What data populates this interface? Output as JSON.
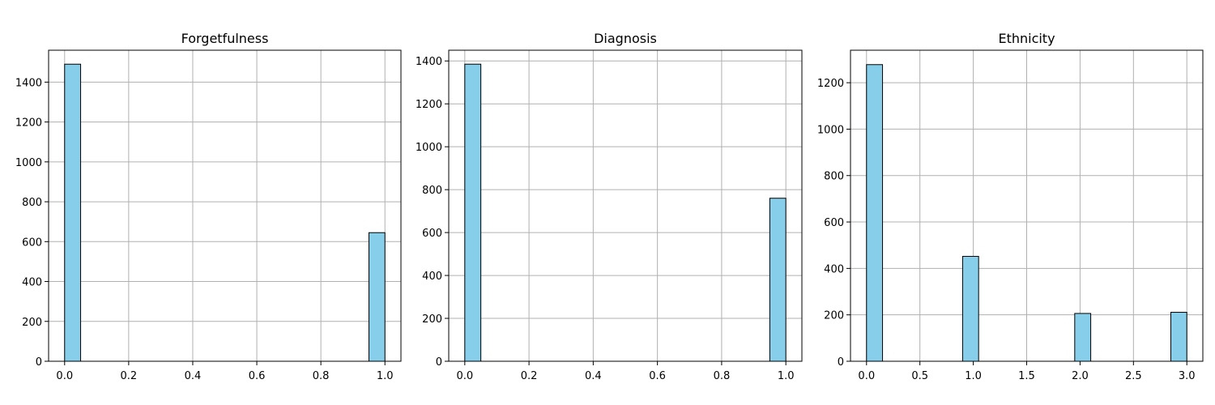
{
  "chart_data": [
    {
      "type": "bar",
      "title": "Forgetfulness",
      "xlim": [
        -0.05,
        1.05
      ],
      "ylim": [
        0,
        1560
      ],
      "xticks": [
        "0.0",
        "0.2",
        "0.4",
        "0.6",
        "0.8",
        "1.0"
      ],
      "yticks": [
        "0",
        "200",
        "400",
        "600",
        "800",
        "1000",
        "1200",
        "1400"
      ],
      "grid": true,
      "bins": [
        {
          "x0": 0.0,
          "x1": 0.05,
          "count": 1490
        },
        {
          "x0": 0.95,
          "x1": 1.0,
          "count": 645
        }
      ],
      "bar_color": "#87ceeb",
      "edge_color": "#000000"
    },
    {
      "type": "bar",
      "title": "Diagnosis",
      "xlim": [
        -0.05,
        1.05
      ],
      "ylim": [
        0,
        1450
      ],
      "xticks": [
        "0.0",
        "0.2",
        "0.4",
        "0.6",
        "0.8",
        "1.0"
      ],
      "yticks": [
        "0",
        "200",
        "400",
        "600",
        "800",
        "1000",
        "1200",
        "1400"
      ],
      "grid": true,
      "bins": [
        {
          "x0": 0.0,
          "x1": 0.05,
          "count": 1385
        },
        {
          "x0": 0.95,
          "x1": 1.0,
          "count": 760
        }
      ],
      "bar_color": "#87ceeb",
      "edge_color": "#000000"
    },
    {
      "type": "bar",
      "title": "Ethnicity",
      "xlim": [
        -0.15,
        3.15
      ],
      "ylim": [
        0,
        1340
      ],
      "xticks": [
        "0.0",
        "0.5",
        "1.0",
        "1.5",
        "2.0",
        "2.5",
        "3.0"
      ],
      "yticks": [
        "0",
        "200",
        "400",
        "600",
        "800",
        "1000",
        "1200"
      ],
      "grid": true,
      "bins": [
        {
          "x0": 0.0,
          "x1": 0.15,
          "count": 1278
        },
        {
          "x0": 0.9,
          "x1": 1.05,
          "count": 452
        },
        {
          "x0": 1.95,
          "x1": 2.1,
          "count": 206
        },
        {
          "x0": 2.85,
          "x1": 3.0,
          "count": 211
        }
      ],
      "bar_color": "#87ceeb",
      "edge_color": "#000000"
    }
  ]
}
